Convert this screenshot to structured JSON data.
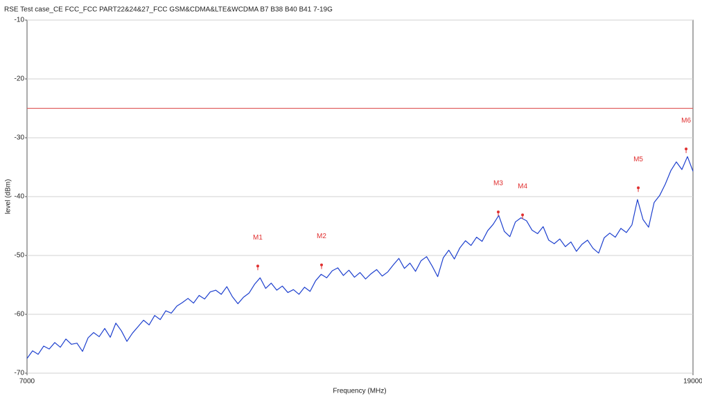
{
  "chart_data": {
    "type": "line",
    "title": "RSE Test case_CE FCC_FCC PART22&24&27_FCC GSM&CDMA&LTE&WCDMA B7 B38 B40 B41 7-19G",
    "x_label": "Frequency (MHz)",
    "y_label": "level (dBm)",
    "xlim": [
      7000,
      19000
    ],
    "xticks": [
      7000,
      19000
    ],
    "ylim": [
      -70,
      -10
    ],
    "yticks": [
      -70,
      -60,
      -50,
      -40,
      -30,
      -20,
      -10
    ],
    "grid": true,
    "x": [
      7000,
      7100,
      7200,
      7300,
      7400,
      7500,
      7600,
      7700,
      7800,
      7900,
      8000,
      8100,
      8200,
      8300,
      8400,
      8500,
      8600,
      8700,
      8800,
      8900,
      9000,
      9100,
      9200,
      9300,
      9400,
      9500,
      9600,
      9700,
      9800,
      9900,
      10000,
      10100,
      10200,
      10300,
      10400,
      10500,
      10600,
      10700,
      10800,
      10900,
      11000,
      11100,
      11200,
      11300,
      11400,
      11500,
      11600,
      11700,
      11800,
      11900,
      12000,
      12100,
      12200,
      12300,
      12400,
      12500,
      12600,
      12700,
      12800,
      12900,
      13000,
      13100,
      13200,
      13300,
      13400,
      13500,
      13600,
      13700,
      13800,
      13900,
      14000,
      14100,
      14200,
      14300,
      14400,
      14500,
      14600,
      14700,
      14800,
      14900,
      15000,
      15100,
      15200,
      15300,
      15400,
      15500,
      15600,
      15700,
      15800,
      15900,
      16000,
      16100,
      16200,
      16300,
      16400,
      16500,
      16600,
      16700,
      16800,
      16900,
      17000,
      17100,
      17200,
      17300,
      17400,
      17500,
      17600,
      17700,
      17800,
      17900,
      18000,
      18100,
      18200,
      18300,
      18400,
      18500,
      18600,
      18700,
      18800,
      18900,
      19000
    ],
    "series": [
      {
        "color": "#1c3fce",
        "values": [
          -67.5,
          -66.2,
          -66.8,
          -65.4,
          -65.9,
          -64.8,
          -65.6,
          -64.2,
          -65.1,
          -64.9,
          -66.3,
          -64.0,
          -63.1,
          -63.8,
          -62.4,
          -63.9,
          -61.5,
          -62.8,
          -64.6,
          -63.2,
          -62.1,
          -61.0,
          -61.8,
          -60.2,
          -60.9,
          -59.4,
          -59.8,
          -58.6,
          -58.0,
          -57.3,
          -58.1,
          -56.8,
          -57.4,
          -56.2,
          -55.9,
          -56.6,
          -55.3,
          -57.0,
          -58.2,
          -57.1,
          -56.4,
          -54.9,
          -53.8,
          -55.6,
          -54.7,
          -55.9,
          -55.2,
          -56.3,
          -55.8,
          -56.6,
          -55.4,
          -56.1,
          -54.3,
          -53.2,
          -53.8,
          -52.6,
          -52.1,
          -53.4,
          -52.5,
          -53.7,
          -52.9,
          -54.0,
          -53.1,
          -52.4,
          -53.5,
          -52.8,
          -51.6,
          -50.5,
          -52.2,
          -51.3,
          -52.7,
          -50.9,
          -50.2,
          -51.8,
          -53.6,
          -50.4,
          -49.1,
          -50.6,
          -48.7,
          -47.5,
          -48.3,
          -46.9,
          -47.6,
          -45.8,
          -44.7,
          -43.2,
          -45.9,
          -46.8,
          -44.3,
          -43.6,
          -44.1,
          -45.7,
          -46.3,
          -45.1,
          -47.4,
          -48.0,
          -47.2,
          -48.5,
          -47.7,
          -49.3,
          -48.1,
          -47.4,
          -48.8,
          -49.6,
          -47.0,
          -46.2,
          -46.9,
          -45.4,
          -46.1,
          -44.8,
          -40.5,
          -43.9,
          -45.2,
          -41.0,
          -39.8,
          -37.9,
          -35.6,
          -34.1,
          -35.4,
          -33.2,
          -35.7
        ]
      }
    ],
    "limit_line": {
      "value": -25,
      "color": "#e06060"
    },
    "markers": [
      {
        "label": "M1",
        "x": 11158,
        "y": -51.8
      },
      {
        "label": "M2",
        "x": 12307,
        "y": -51.6
      },
      {
        "label": "M3",
        "x": 15491,
        "y": -42.6
      },
      {
        "label": "M4",
        "x": 15929,
        "y": -43.1
      },
      {
        "label": "M5",
        "x": 18014,
        "y": -38.5
      },
      {
        "label": "M6",
        "x": 18876,
        "y": -31.9
      }
    ],
    "marker_color": "#e03030"
  }
}
